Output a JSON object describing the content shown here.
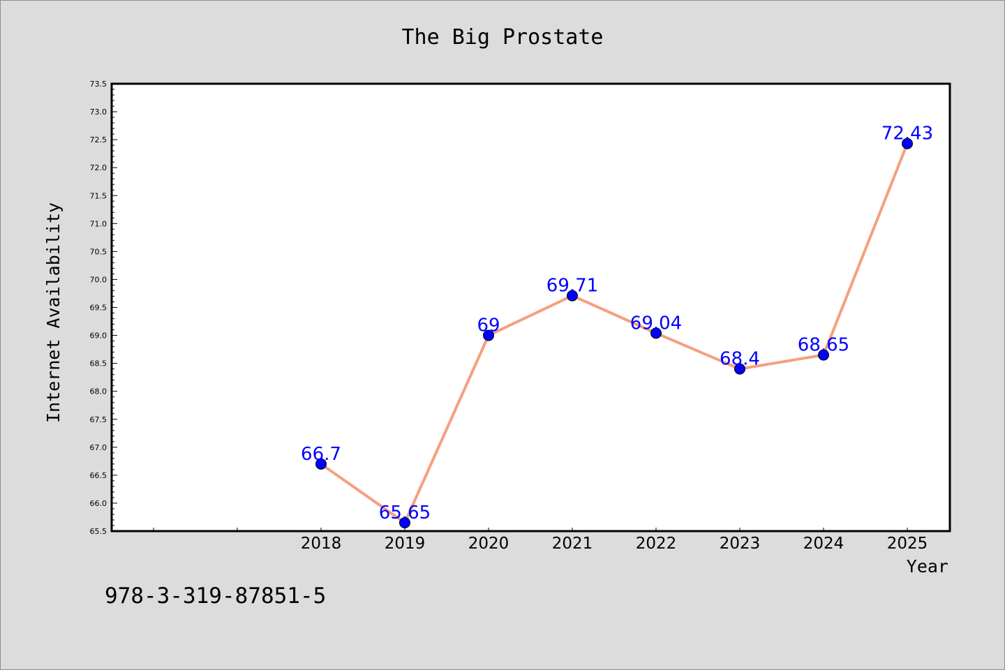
{
  "chart_data": {
    "type": "line",
    "title": "The Big Prostate",
    "xlabel": "Year",
    "ylabel": "Internet Availability",
    "x": [
      "2018",
      "2019",
      "2020",
      "2021",
      "2022",
      "2023",
      "2024",
      "2025"
    ],
    "series": [
      {
        "values": [
          66.7,
          65.65,
          69,
          69.71,
          69.04,
          68.4,
          68.65,
          72.43
        ],
        "labels": [
          "66.7",
          "65.65",
          "69",
          "69.71",
          "69.04",
          "68.4",
          "68.65",
          "72.43"
        ]
      }
    ],
    "ylim": [
      65.5,
      73.5
    ],
    "yticks": [
      "65.5",
      "66.0",
      "66.5",
      "67.0",
      "67.5",
      "68.0",
      "68.5",
      "69.0",
      "69.5",
      "70.0",
      "70.5",
      "71.0",
      "71.5",
      "72.0",
      "72.5",
      "73.0",
      "73.5"
    ],
    "grid": false,
    "colors": {
      "line": "#f4a07e",
      "marker": "#0000ff",
      "data_label": "#0000ff",
      "plot_background": "#ffffff",
      "figure_background": "#dcdcdc"
    }
  },
  "footer": {
    "isbn": "978-3-319-87851-5"
  }
}
